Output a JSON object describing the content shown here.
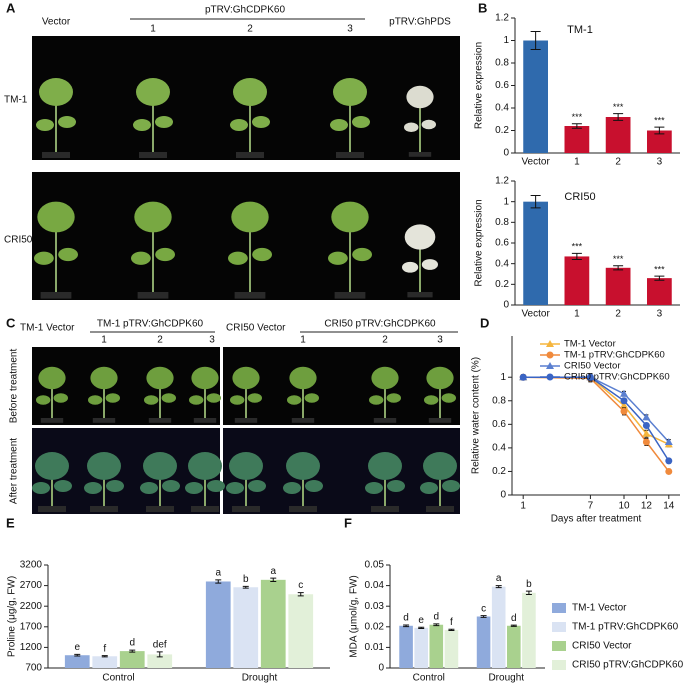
{
  "panel_labels": [
    "A",
    "B",
    "C",
    "D",
    "E",
    "F"
  ],
  "photo_panel_A": {
    "column_labels": [
      "Vector",
      "1",
      "2",
      "3",
      "pTRV:GhPDS"
    ],
    "group_label": "pTRV:GhCDPK60",
    "row_labels": [
      "TM-1",
      "CRI50"
    ]
  },
  "photo_panel_C": {
    "left_title": "TM-1 Vector",
    "left_group": "TM-1 pTRV:GhCDPK60",
    "left_numbers": [
      "1",
      "2",
      "3"
    ],
    "right_title": "CRI50 Vector",
    "right_group": "CRI50 pTRV:GhCDPK60",
    "right_numbers": [
      "1",
      "2",
      "3"
    ],
    "row_labels": [
      "Before treatment",
      "After treatment"
    ]
  },
  "chart_data": [
    {
      "type": "bar",
      "title": "TM-1",
      "y_label": "Relative expression",
      "categories": [
        "Vector",
        "1",
        "2",
        "3"
      ],
      "values": [
        1,
        0.24,
        0.32,
        0.2
      ],
      "errors": [
        0.08,
        0.02,
        0.03,
        0.03
      ],
      "colors": [
        "#2f6aad",
        "#c8102e",
        "#c8102e",
        "#c8102e"
      ],
      "significance": [
        null,
        "***",
        "***",
        "***"
      ],
      "ylim": [
        0,
        1.2
      ],
      "yticks": [
        0,
        0.2,
        0.4,
        0.6,
        0.8,
        1,
        1.2
      ]
    },
    {
      "type": "bar",
      "title": "CRI50",
      "y_label": "Relative expression",
      "categories": [
        "Vector",
        "1",
        "2",
        "3"
      ],
      "values": [
        1,
        0.47,
        0.36,
        0.26
      ],
      "errors": [
        0.06,
        0.03,
        0.02,
        0.02
      ],
      "colors": [
        "#2f6aad",
        "#c8102e",
        "#c8102e",
        "#c8102e"
      ],
      "significance": [
        null,
        "***",
        "***",
        "***"
      ],
      "ylim": [
        0,
        1.2
      ],
      "yticks": [
        0,
        0.2,
        0.4,
        0.6,
        0.8,
        1,
        1.2
      ]
    },
    {
      "type": "line",
      "y_label": "Relative water content (%)",
      "x_label": "Days after treatment",
      "x": [
        1,
        7,
        10,
        12,
        14
      ],
      "xlim": [
        0,
        15
      ],
      "xticks": [
        1,
        7,
        10,
        12,
        14
      ],
      "ylim": [
        0,
        1.35
      ],
      "yticks": [
        0,
        0.2,
        0.4,
        0.6,
        0.8,
        1
      ],
      "legend": "upper right",
      "series": [
        {
          "name": "TM-1 Vector",
          "color": "#f5b53d",
          "marker": "triangle",
          "values": [
            1,
            1,
            0.76,
            0.52,
            0.43
          ],
          "errors": [
            0.02,
            0.03,
            0.03,
            0.03,
            0.02
          ]
        },
        {
          "name": "TM-1 pTRV:GhCDPK60",
          "color": "#f08a3c",
          "marker": "circle",
          "values": [
            1,
            0.99,
            0.71,
            0.45,
            0.2
          ],
          "errors": [
            0.02,
            0.03,
            0.03,
            0.03,
            0.02
          ]
        },
        {
          "name": "CRI50 Vector",
          "color": "#5a7fd0",
          "marker": "triangle",
          "values": [
            1,
            1,
            0.86,
            0.66,
            0.45
          ],
          "errors": [
            0.02,
            0.03,
            0.02,
            0.02,
            0.02
          ]
        },
        {
          "name": "CRI50 pTRV:GhCDPK60",
          "color": "#3a64c4",
          "marker": "circle",
          "values": [
            1,
            1,
            0.8,
            0.59,
            0.29
          ],
          "errors": [
            0.02,
            0.03,
            0.02,
            0.02,
            0.02
          ]
        }
      ]
    },
    {
      "type": "grouped_bar",
      "y_label": "Proline (μg/g, FW)",
      "categories": [
        "Control",
        "Drought"
      ],
      "ylim": [
        700,
        3200
      ],
      "yticks": [
        700,
        1200,
        1700,
        2200,
        2700,
        3200
      ],
      "series": [
        {
          "color": "#8faadc",
          "values": [
            1010,
            2800
          ],
          "errors": [
            20,
            40
          ],
          "letters": [
            "e",
            "a"
          ]
        },
        {
          "color": "#dae3f3",
          "values": [
            985,
            2660
          ],
          "errors": [
            15,
            20
          ],
          "letters": [
            "f",
            "b"
          ]
        },
        {
          "color": "#a9d18e",
          "values": [
            1110,
            2840
          ],
          "errors": [
            25,
            40
          ],
          "letters": [
            "d",
            "a"
          ]
        },
        {
          "color": "#e2f0d9",
          "values": [
            1030,
            2490
          ],
          "errors": [
            60,
            40
          ],
          "letters": [
            "def",
            "c"
          ]
        }
      ]
    },
    {
      "type": "grouped_bar",
      "y_label": "MDA (μmol/g, FW)",
      "categories": [
        "Control",
        "Drought"
      ],
      "ylim": [
        0,
        0.05
      ],
      "yticks": [
        0,
        0.01,
        0.02,
        0.03,
        0.04,
        0.05
      ],
      "legend": "right",
      "series": [
        {
          "name": "TM-1 Vector",
          "color": "#8faadc",
          "values": [
            0.0205,
            0.025
          ],
          "errors": [
            0.0004,
            0.0004
          ],
          "letters": [
            "d",
            "c"
          ]
        },
        {
          "name": "TM-1 pTRV:GhCDPK60",
          "color": "#dae3f3",
          "values": [
            0.0195,
            0.0395
          ],
          "errors": [
            0.0003,
            0.0005
          ],
          "letters": [
            "e",
            "a"
          ]
        },
        {
          "name": "CRI50 Vector",
          "color": "#a9d18e",
          "values": [
            0.021,
            0.0205
          ],
          "errors": [
            0.0004,
            0.0003
          ],
          "letters": [
            "d",
            "d"
          ]
        },
        {
          "name": "CRI50 pTRV:GhCDPK60",
          "color": "#e2f0d9",
          "values": [
            0.0185,
            0.0365
          ],
          "errors": [
            0.0003,
            0.0008
          ],
          "letters": [
            "f",
            "b"
          ]
        }
      ]
    }
  ]
}
